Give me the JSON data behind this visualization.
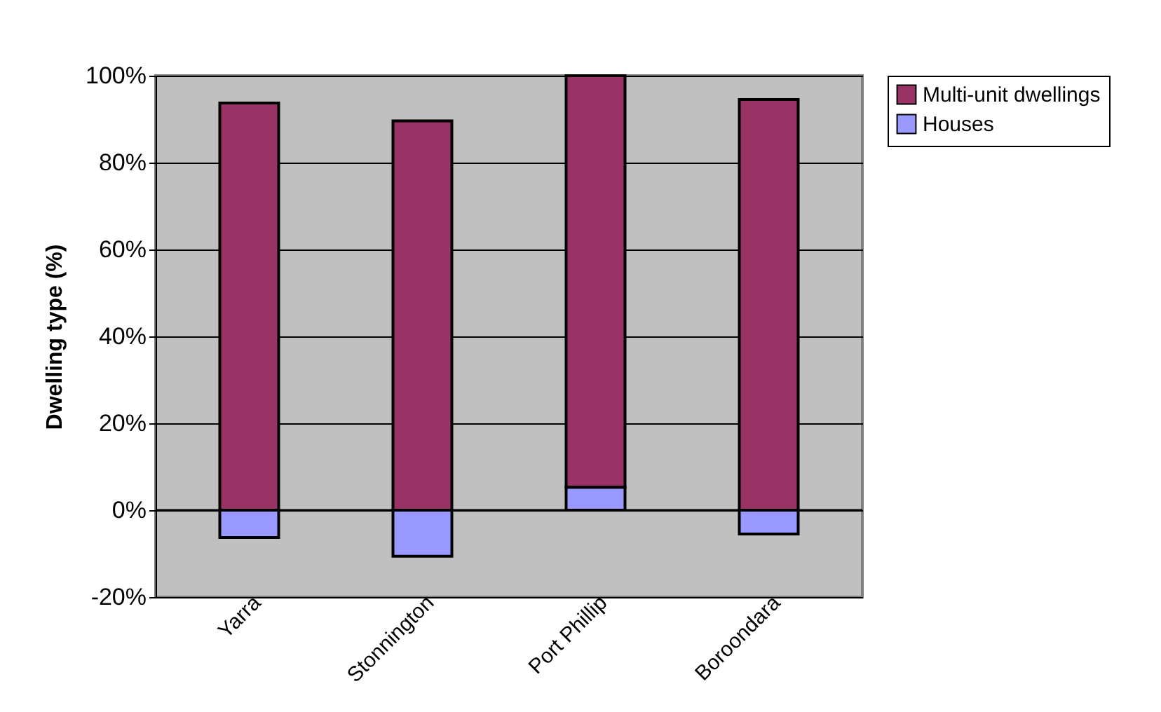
{
  "chart_data": {
    "type": "bar",
    "ylabel": "Dwelling type (%)",
    "categories": [
      "Yarra",
      "Stonnington",
      "Port Phillip",
      "Boroondara"
    ],
    "stacked": true,
    "series": [
      {
        "name": "Houses",
        "color": "#9999ff",
        "values": [
          -6.3,
          -10.6,
          5.3,
          -5.5
        ]
      },
      {
        "name": "Multi-unit dwellings",
        "color": "#993366",
        "values": [
          93.7,
          89.6,
          94.7,
          94.5
        ]
      }
    ],
    "ylim": [
      -20,
      100
    ],
    "yticks": [
      {
        "value": -20,
        "label": "-20%"
      },
      {
        "value": 0,
        "label": "0%"
      },
      {
        "value": 20,
        "label": "20%"
      },
      {
        "value": 40,
        "label": "40%"
      },
      {
        "value": 60,
        "label": "60%"
      },
      {
        "value": 80,
        "label": "80%"
      },
      {
        "value": 100,
        "label": "100%"
      }
    ],
    "grid": "y",
    "legend": "right"
  }
}
